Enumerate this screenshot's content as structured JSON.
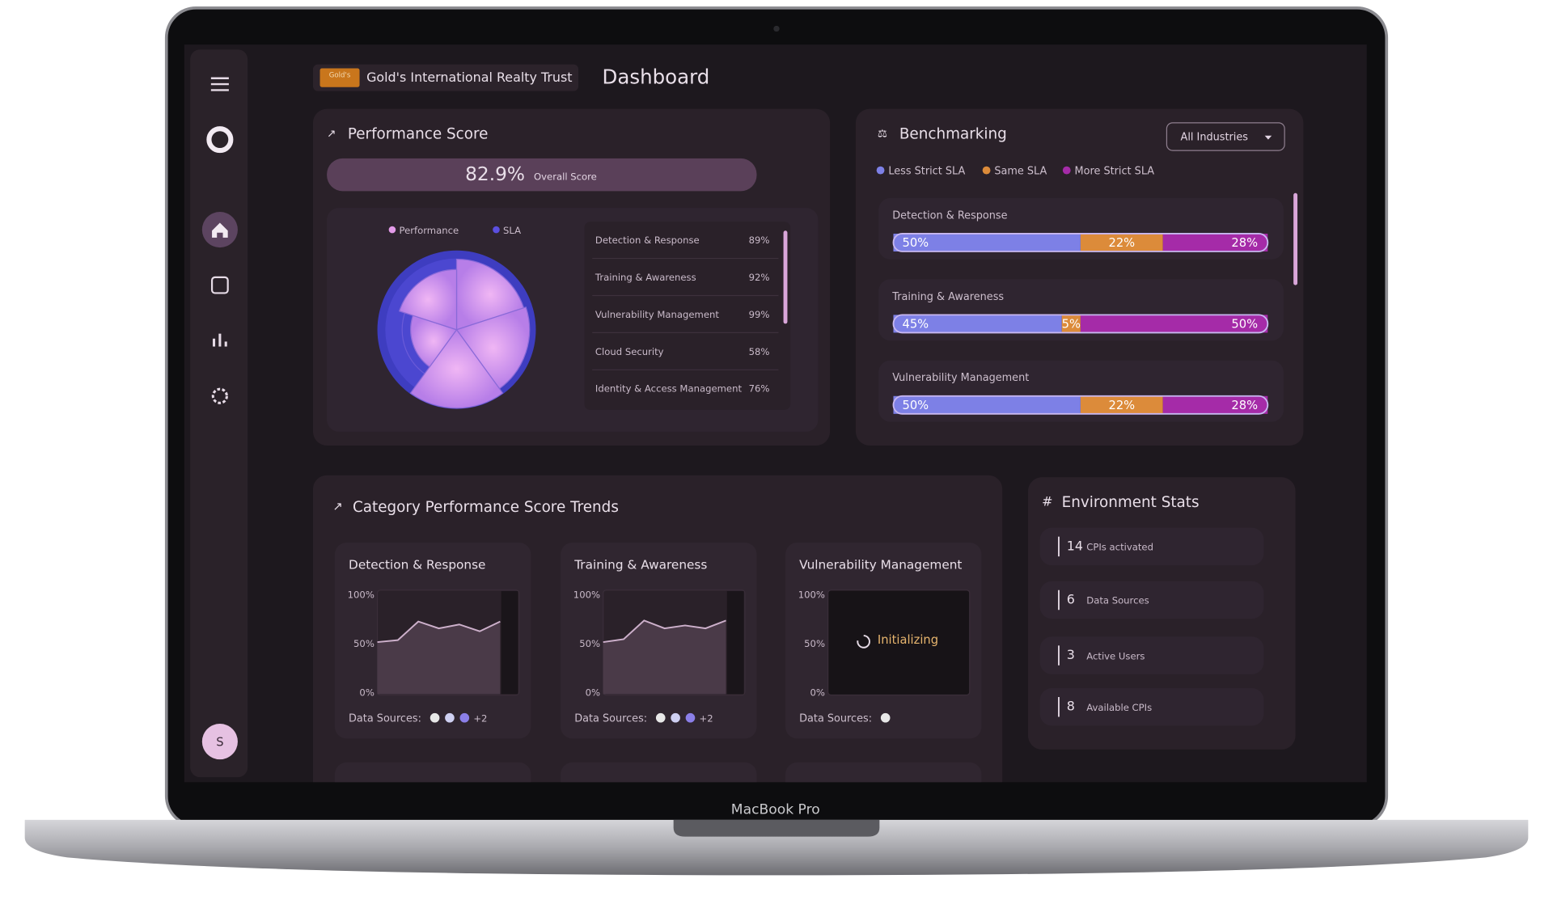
{
  "header": {
    "company_badge": "Gold's",
    "company": "Gold's International Realty Trust",
    "page_title": "Dashboard"
  },
  "sidebar": {
    "avatar": "S"
  },
  "performance": {
    "title": "Performance Score",
    "overall_value": "82.9%",
    "overall_label": "Overall Score",
    "legend": [
      {
        "name": "Performance",
        "color": "#e39be8"
      },
      {
        "name": "SLA",
        "color": "#5b4fe0"
      }
    ],
    "items": [
      {
        "name": "Detection & Response",
        "score": {
          "value": 89,
          "label": "89%"
        }
      },
      {
        "name": "Training & Awareness",
        "score": {
          "value": 92,
          "label": "92%"
        }
      },
      {
        "name": "Vulnerability Management",
        "score": {
          "value": 99,
          "label": "99%"
        }
      },
      {
        "name": "Cloud Security",
        "score": {
          "value": 58,
          "label": "58%"
        }
      },
      {
        "name": "Identity & Access Management",
        "score": {
          "value": 76,
          "label": "76%"
        }
      }
    ]
  },
  "benchmarking": {
    "title": "Benchmarking",
    "filter": "All Industries",
    "legend": [
      {
        "name": "Less Strict SLA",
        "color": "#7d80e6"
      },
      {
        "name": "Same SLA",
        "color": "#dc8b3a"
      },
      {
        "name": "More Strict SLA",
        "color": "#a52ba8"
      }
    ],
    "rows": [
      {
        "name": "Detection & Response",
        "segments": [
          {
            "value": 50,
            "label": "50%"
          },
          {
            "value": 22,
            "label": "22%"
          },
          {
            "value": 28,
            "label": "28%"
          }
        ]
      },
      {
        "name": "Training & Awareness",
        "segments": [
          {
            "value": 45,
            "label": "45%"
          },
          {
            "value": 5,
            "label": "5%"
          },
          {
            "value": 50,
            "label": "50%"
          }
        ]
      },
      {
        "name": "Vulnerability Management",
        "segments": [
          {
            "value": 50,
            "label": "50%"
          },
          {
            "value": 22,
            "label": "22%"
          },
          {
            "value": 28,
            "label": "28%"
          }
        ]
      }
    ]
  },
  "trends": {
    "title": "Category Performance Score Trends",
    "ylim": [
      0,
      100
    ],
    "yticks": [
      {
        "value": 100,
        "label": "100%"
      },
      {
        "value": 50,
        "label": "50%"
      },
      {
        "value": 0,
        "label": "0%"
      }
    ],
    "data_sources_label": "Data Sources:",
    "cards": [
      {
        "title": "Detection & Response",
        "values": [
          52,
          54,
          73,
          66,
          70,
          63,
          73
        ],
        "more_sources": "+2"
      },
      {
        "title": "Training & Awareness",
        "values": [
          52,
          55,
          74,
          66,
          69,
          66,
          74
        ],
        "more_sources": "+2"
      },
      {
        "title": "Vulnerability Management",
        "status": "Initializing"
      }
    ]
  },
  "environment": {
    "title": "Environment Stats",
    "stats": [
      {
        "value": 14,
        "label": "CPIs activated"
      },
      {
        "value": 6,
        "label": "Data Sources"
      },
      {
        "value": 3,
        "label": "Active Users"
      },
      {
        "value": 8,
        "label": "Available CPIs"
      }
    ]
  },
  "device": {
    "label": "MacBook Pro"
  }
}
